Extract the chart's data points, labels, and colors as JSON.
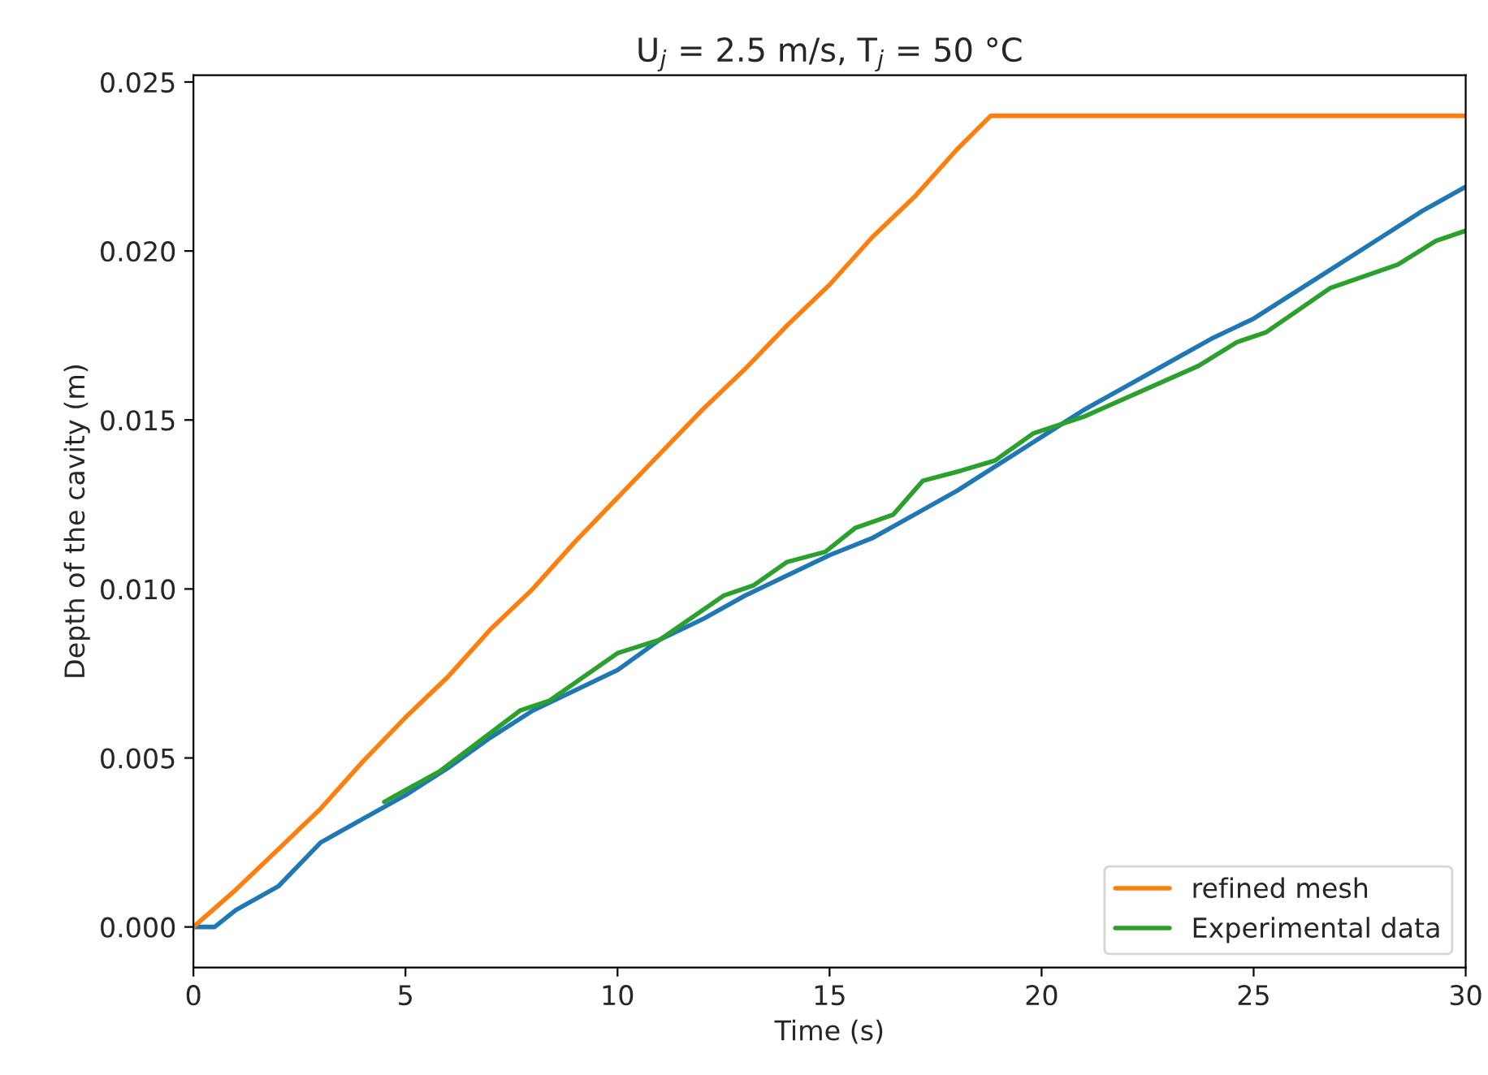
{
  "chart_data": {
    "type": "line",
    "title": "U$_{j}$ = 2.5 m/s, T$_{j}$ = 50 °C",
    "xlabel": "Time (s)",
    "ylabel": "Depth of the cavity (m)",
    "xlim": [
      0,
      30
    ],
    "ylim": [
      -0.0012,
      0.0252
    ],
    "xticks": [
      0,
      5,
      10,
      15,
      20,
      25,
      30
    ],
    "yticks": [
      {
        "value": 0,
        "label": "0.000"
      },
      {
        "value": 0.005,
        "label": "0.005"
      },
      {
        "value": 0.01,
        "label": "0.010"
      },
      {
        "value": 0.015,
        "label": "0.015"
      },
      {
        "value": 0.02,
        "label": "0.020"
      },
      {
        "value": 0.025,
        "label": "0.025"
      }
    ],
    "grid": false,
    "legend": "bottom right",
    "series": [
      {
        "color": "#1f77b4",
        "x": [
          0,
          0.5,
          1,
          2,
          3,
          4,
          5,
          6,
          7,
          8,
          9,
          10,
          11,
          12,
          13,
          14,
          15,
          16,
          17,
          18,
          19,
          20,
          21,
          22,
          23,
          24,
          25,
          26,
          27,
          28,
          29,
          30
        ],
        "values": [
          0,
          0,
          0.0005,
          0.0012,
          0.0025,
          0.0032,
          0.0039,
          0.0047,
          0.0056,
          0.0064,
          0.007,
          0.0076,
          0.0085,
          0.0091,
          0.0098,
          0.0104,
          0.011,
          0.0115,
          0.0122,
          0.0129,
          0.0137,
          0.0145,
          0.0153,
          0.016,
          0.0167,
          0.0174,
          0.018,
          0.0188,
          0.0196,
          0.0204,
          0.0212,
          0.0219
        ]
      },
      {
        "name": "refined mesh",
        "color": "#ff7f0e",
        "x": [
          0,
          1,
          2,
          3,
          4,
          5,
          6,
          7,
          8,
          9,
          10,
          11,
          12,
          13,
          14,
          15,
          16,
          17,
          18,
          18.8,
          30
        ],
        "values": [
          0,
          0.0011,
          0.0023,
          0.0035,
          0.0049,
          0.0062,
          0.0074,
          0.0088,
          0.01,
          0.0114,
          0.0127,
          0.014,
          0.0153,
          0.0165,
          0.0178,
          0.019,
          0.0204,
          0.0216,
          0.023,
          0.024,
          0.024
        ]
      },
      {
        "name": "Experimental data",
        "color": "#2ca02c",
        "x": [
          4.5,
          5.8,
          7.7,
          8.4,
          10,
          11,
          12.5,
          13.2,
          14,
          14.9,
          15.6,
          16.5,
          17.2,
          18.1,
          18.9,
          19.8,
          21,
          23.7,
          24.6,
          25.3,
          26.8,
          28.4,
          29.3,
          30
        ],
        "values": [
          0.0037,
          0.0046,
          0.0064,
          0.0067,
          0.0081,
          0.0085,
          0.0098,
          0.0101,
          0.0108,
          0.0111,
          0.0118,
          0.0122,
          0.0132,
          0.0135,
          0.0138,
          0.0146,
          0.0151,
          0.0166,
          0.0173,
          0.0176,
          0.0189,
          0.0196,
          0.0203,
          0.0206
        ]
      }
    ]
  }
}
